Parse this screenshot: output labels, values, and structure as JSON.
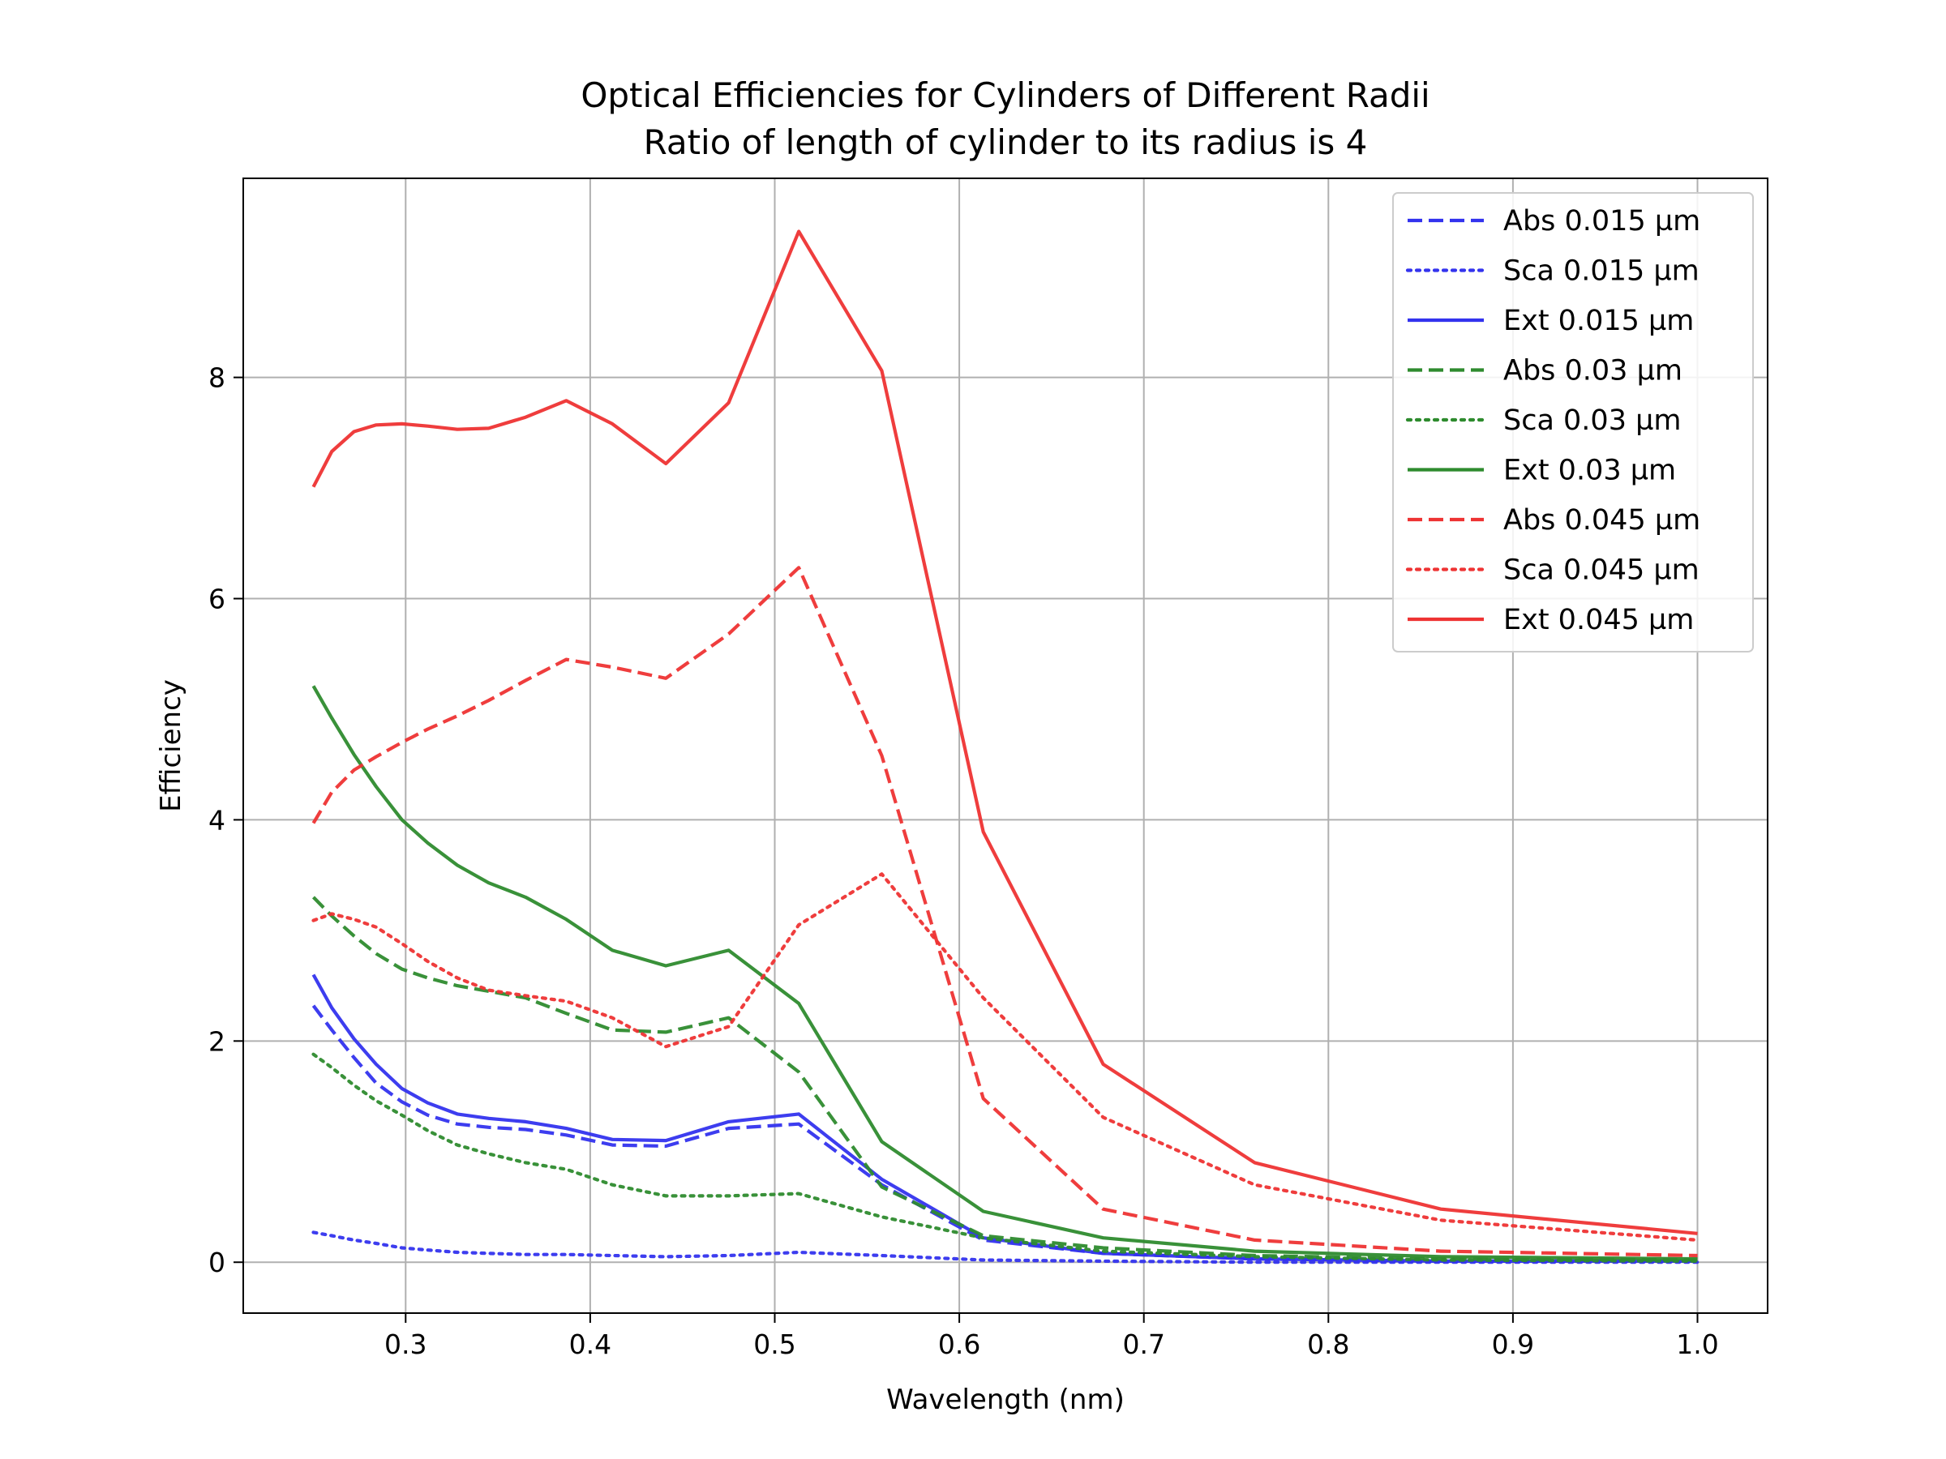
{
  "chart_data": {
    "type": "line",
    "title": "Optical Efficiencies for Cylinders of Different Radii",
    "subtitle": "Ratio of length of cylinder to its radius is 4",
    "xlabel": "Wavelength (nm)",
    "ylabel": "Efficiency",
    "xlim": [
      0.212,
      1.038
    ],
    "ylim": [
      -0.46,
      9.8
    ],
    "xticks": [
      0.3,
      0.4,
      0.5,
      0.6,
      0.7,
      0.8,
      0.9,
      1.0
    ],
    "xtick_labels": [
      "0.3",
      "0.4",
      "0.5",
      "0.6",
      "0.7",
      "0.8",
      "0.9",
      "1.0"
    ],
    "yticks": [
      0,
      2,
      4,
      6,
      8
    ],
    "ytick_labels": [
      "0",
      "2",
      "4",
      "6",
      "8"
    ],
    "grid": true,
    "legend_position": "top-right",
    "x": [
      0.25,
      0.26,
      0.272,
      0.284,
      0.298,
      0.312,
      0.328,
      0.345,
      0.365,
      0.387,
      0.412,
      0.441,
      0.475,
      0.513,
      0.558,
      0.613,
      0.678,
      0.76,
      0.861,
      1.0
    ],
    "series": [
      {
        "name": "Abs 0.015 µm",
        "color": "#3333ee",
        "style": "dashed",
        "values": [
          2.32,
          2.1,
          1.85,
          1.62,
          1.45,
          1.33,
          1.25,
          1.22,
          1.2,
          1.15,
          1.06,
          1.05,
          1.21,
          1.25,
          0.7,
          0.2,
          0.08,
          0.03,
          0.01,
          0.01
        ]
      },
      {
        "name": "Sca 0.015 µm",
        "color": "#3333ee",
        "style": "dotted",
        "values": [
          0.27,
          0.24,
          0.2,
          0.17,
          0.13,
          0.11,
          0.09,
          0.08,
          0.07,
          0.07,
          0.06,
          0.05,
          0.06,
          0.09,
          0.06,
          0.02,
          0.01,
          0.0,
          0.0,
          0.0
        ]
      },
      {
        "name": "Ext 0.015 µm",
        "color": "#3333ee",
        "style": "solid",
        "values": [
          2.6,
          2.3,
          2.02,
          1.79,
          1.57,
          1.44,
          1.34,
          1.3,
          1.27,
          1.21,
          1.11,
          1.1,
          1.27,
          1.34,
          0.75,
          0.22,
          0.08,
          0.03,
          0.01,
          0.01
        ]
      },
      {
        "name": "Abs 0.03 µm",
        "color": "#2e8b2e",
        "style": "dashed",
        "values": [
          3.3,
          3.13,
          2.95,
          2.79,
          2.65,
          2.57,
          2.5,
          2.45,
          2.39,
          2.25,
          2.1,
          2.08,
          2.21,
          1.72,
          0.68,
          0.24,
          0.13,
          0.06,
          0.03,
          0.02
        ]
      },
      {
        "name": "Sca 0.03 µm",
        "color": "#2e8b2e",
        "style": "dotted",
        "values": [
          1.88,
          1.76,
          1.6,
          1.46,
          1.33,
          1.19,
          1.06,
          0.98,
          0.9,
          0.84,
          0.7,
          0.6,
          0.6,
          0.62,
          0.41,
          0.22,
          0.1,
          0.05,
          0.02,
          0.01
        ]
      },
      {
        "name": "Ext 0.03 µm",
        "color": "#2e8b2e",
        "style": "solid",
        "values": [
          5.21,
          4.92,
          4.59,
          4.3,
          4.0,
          3.79,
          3.59,
          3.43,
          3.3,
          3.1,
          2.82,
          2.68,
          2.82,
          2.34,
          1.09,
          0.46,
          0.22,
          0.1,
          0.05,
          0.03
        ]
      },
      {
        "name": "Abs 0.045 µm",
        "color": "#ee3333",
        "style": "dashed",
        "values": [
          3.97,
          4.25,
          4.45,
          4.57,
          4.7,
          4.82,
          4.94,
          5.08,
          5.26,
          5.45,
          5.38,
          5.28,
          5.68,
          6.28,
          4.58,
          1.48,
          0.48,
          0.2,
          0.1,
          0.06
        ]
      },
      {
        "name": "Sca 0.045 µm",
        "color": "#ee3333",
        "style": "dotted",
        "values": [
          3.09,
          3.15,
          3.1,
          3.03,
          2.88,
          2.72,
          2.57,
          2.46,
          2.41,
          2.36,
          2.21,
          1.95,
          2.13,
          3.05,
          3.51,
          2.39,
          1.31,
          0.7,
          0.38,
          0.2
        ]
      },
      {
        "name": "Ext 0.045 µm",
        "color": "#ee3333",
        "style": "solid",
        "values": [
          7.01,
          7.33,
          7.51,
          7.57,
          7.58,
          7.56,
          7.53,
          7.54,
          7.64,
          7.79,
          7.58,
          7.22,
          7.77,
          9.32,
          8.06,
          3.89,
          1.79,
          0.9,
          0.48,
          0.26
        ]
      }
    ]
  }
}
